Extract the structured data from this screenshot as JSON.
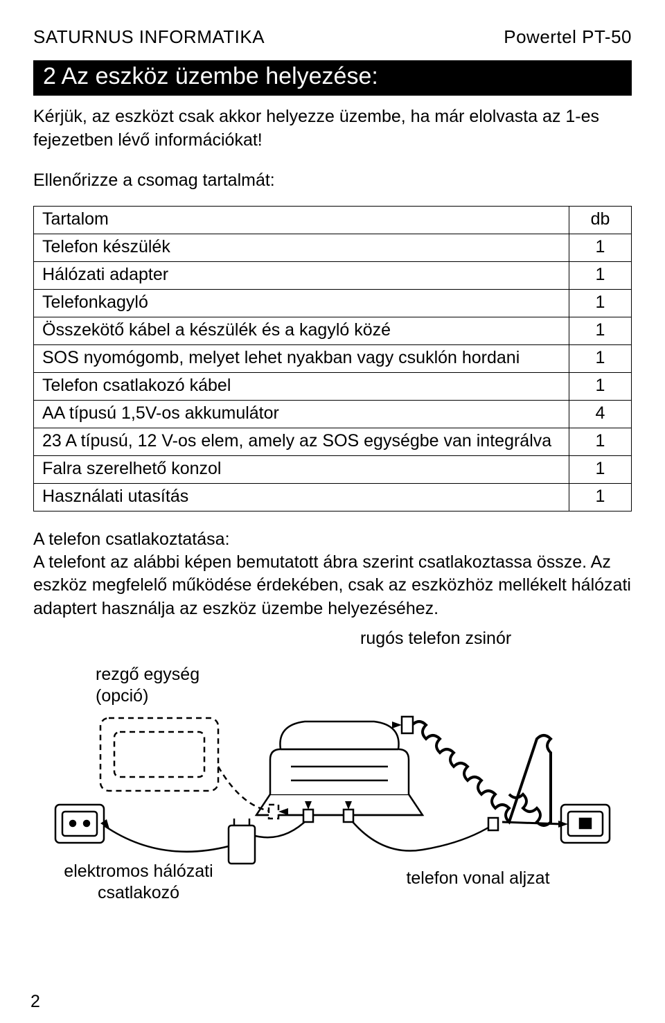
{
  "header": {
    "left": "SATURNUS INFORMATIKA",
    "right": "Powertel PT-50"
  },
  "section": {
    "title": "2 Az eszköz üzembe helyezése:",
    "intro": "Kérjük, az eszközt csak akkor helyezze üzembe, ha már elolvasta az 1-es fejezetben lévő információkat!",
    "check_contents": "Ellenőrizze a csomag tartalmát:"
  },
  "table": {
    "header_item": "Tartalom",
    "header_qty": "db",
    "rows": [
      {
        "item": "Telefon készülék",
        "qty": "1"
      },
      {
        "item": "Hálózati adapter",
        "qty": "1"
      },
      {
        "item": "Telefonkagyló",
        "qty": "1"
      },
      {
        "item": "Összekötő kábel a készülék és a kagyló közé",
        "qty": "1"
      },
      {
        "item": "SOS nyomógomb, melyet lehet nyakban vagy csuklón hordani",
        "qty": "1"
      },
      {
        "item": "Telefon csatlakozó kábel",
        "qty": "1"
      },
      {
        "item": "AA típusú 1,5V-os akkumulátor",
        "qty": "4"
      },
      {
        "item": "23 A típusú, 12 V-os elem, amely az SOS egységbe van integrálva",
        "qty": "1"
      },
      {
        "item": "Falra szerelhető konzol",
        "qty": "1"
      },
      {
        "item": "Használati utasítás",
        "qty": "1"
      }
    ]
  },
  "connect": {
    "heading": "A telefon csatlakoztatása:",
    "body": "A telefont az alábbi képen bemutatott ábra szerint csatlakoztassa össze. Az eszköz megfelelő működése érdekében, csak az eszközhöz mellékelt hálózati adaptert használja az eszköz üzembe helyezéséhez."
  },
  "diagram": {
    "label_cord": "rugós telefon zsinór",
    "label_shaker": "rezgő egység\n(opció)",
    "label_power": "elektromos hálózati\ncsatlakozó",
    "label_line": "telefon vonal aljzat",
    "colors": {
      "stroke": "#000000",
      "fill_bg": "#ffffff",
      "fill_shade": "#cccccc"
    }
  },
  "page_number": "2"
}
